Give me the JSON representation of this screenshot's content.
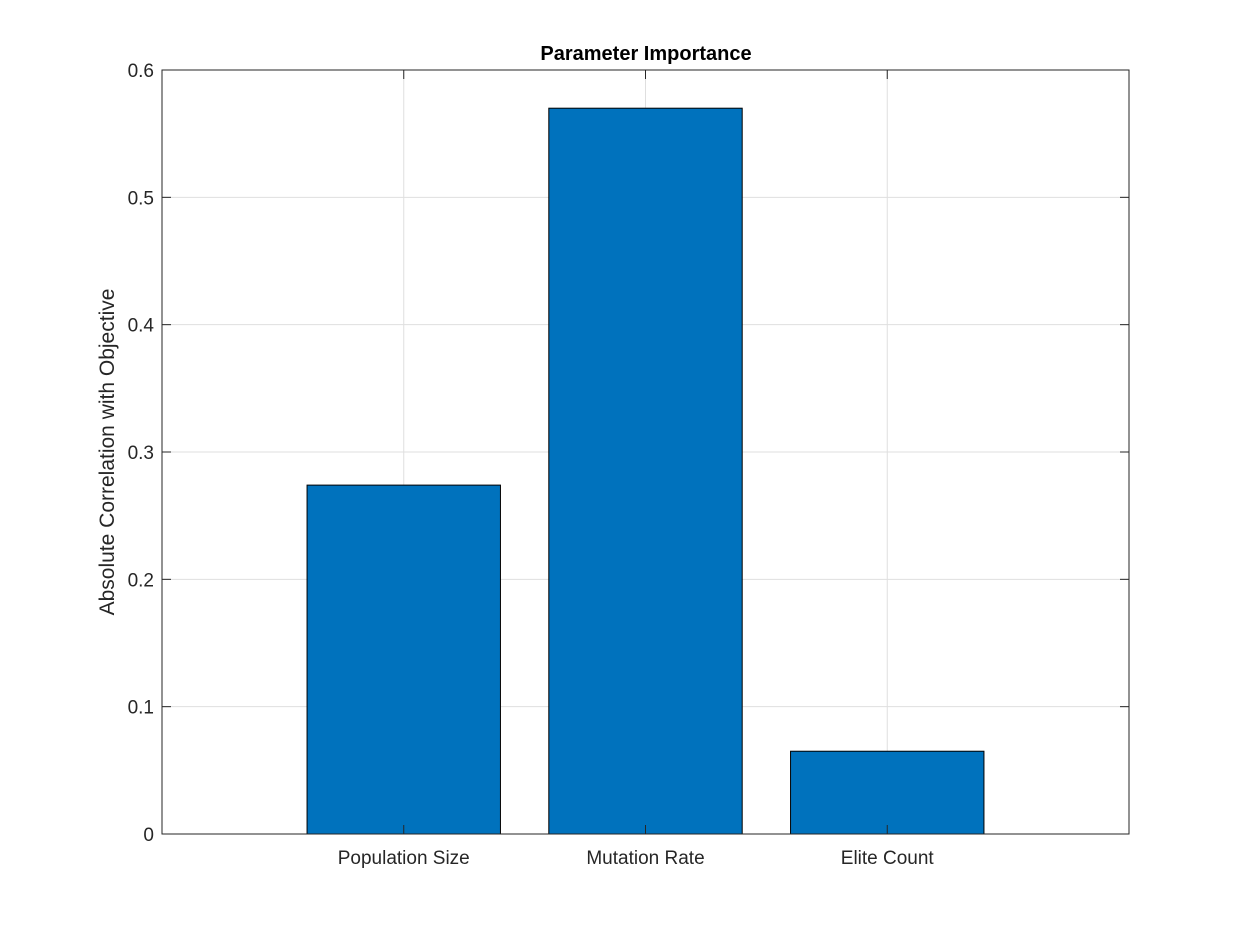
{
  "chart_data": {
    "type": "bar",
    "title": "Parameter Importance",
    "xlabel": "",
    "ylabel": "Absolute Correlation with Objective",
    "categories": [
      "Population Size",
      "Mutation Rate",
      "Elite Count"
    ],
    "values": [
      0.274,
      0.57,
      0.065
    ],
    "ylim": [
      0,
      0.6
    ],
    "yticks": [
      "0",
      "0.1",
      "0.2",
      "0.3",
      "0.4",
      "0.5",
      "0.6"
    ],
    "xlim": [
      0,
      4
    ],
    "grid": true,
    "legend": "none",
    "colors": {
      "bar": "#0072BD",
      "bar_edge": "#000000",
      "grid": "#dfdfdf",
      "axis": "#262626"
    }
  }
}
